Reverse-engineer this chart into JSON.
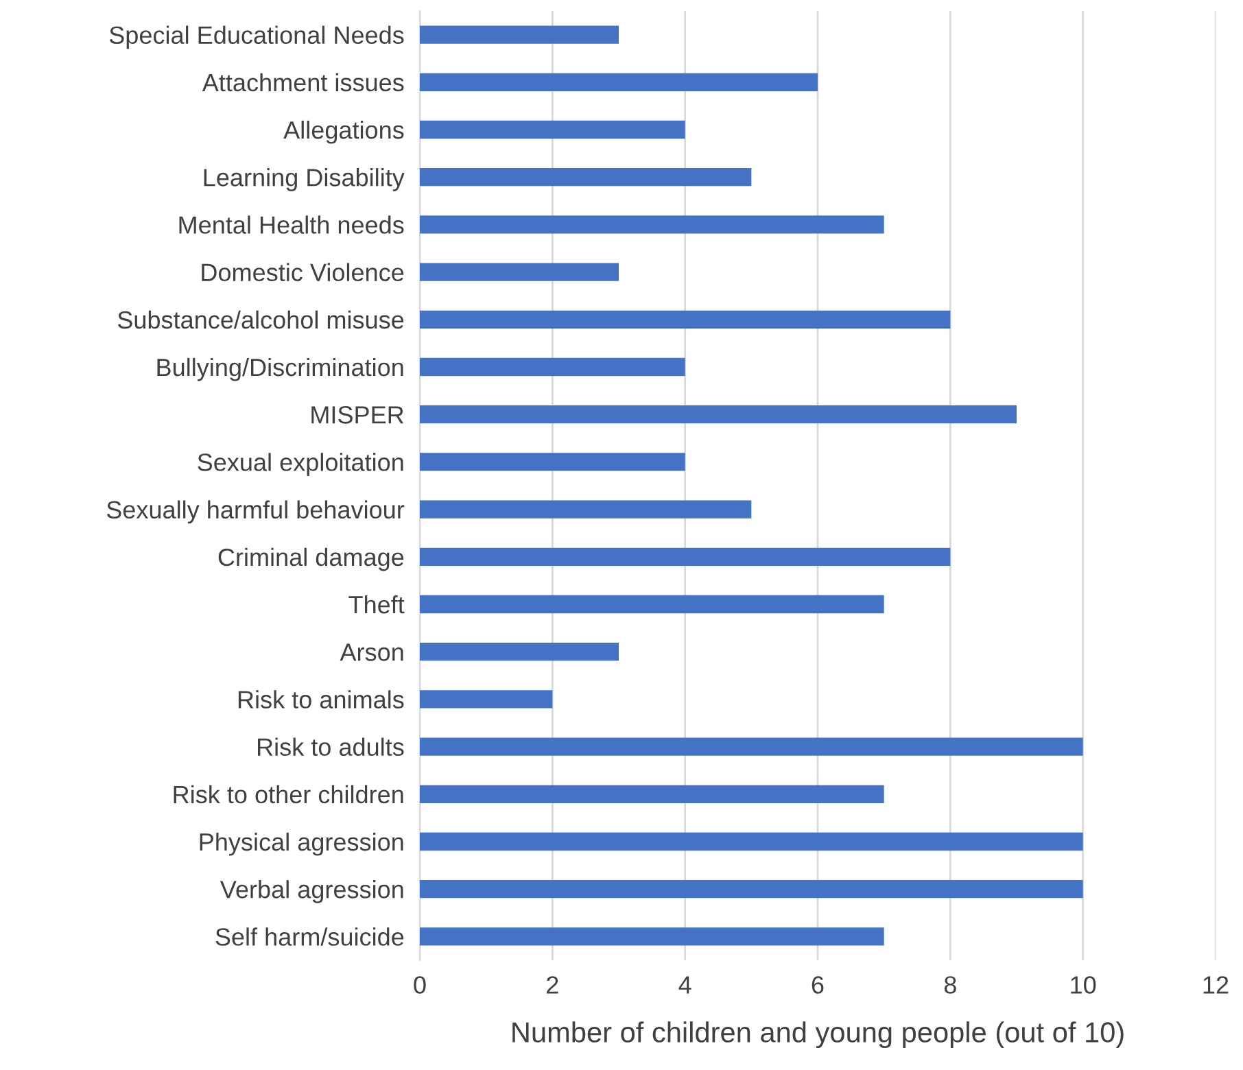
{
  "chart_data": {
    "type": "bar",
    "orientation": "horizontal",
    "xlabel": "Number of children and young people (out of 10)",
    "categories": [
      "Special Educational Needs",
      "Attachment issues",
      "Allegations",
      "Learning Disability",
      "Mental Health needs",
      "Domestic Violence",
      "Substance/alcohol misuse",
      "Bullying/Discrimination",
      "MISPER",
      "Sexual exploitation",
      "Sexually harmful behaviour",
      "Criminal damage",
      "Theft",
      "Arson",
      "Risk to animals",
      "Risk to adults",
      "Risk to other children",
      "Physical agression",
      "Verbal agression",
      "Self harm/suicide"
    ],
    "values": [
      3,
      6,
      4,
      5,
      7,
      3,
      8,
      4,
      9,
      4,
      5,
      8,
      7,
      3,
      2,
      10,
      7,
      10,
      10,
      7
    ],
    "color": "#4472c4",
    "xlim": [
      0,
      12
    ],
    "xticks": [
      0,
      2,
      4,
      6,
      8,
      10,
      12
    ],
    "grid": "x"
  }
}
